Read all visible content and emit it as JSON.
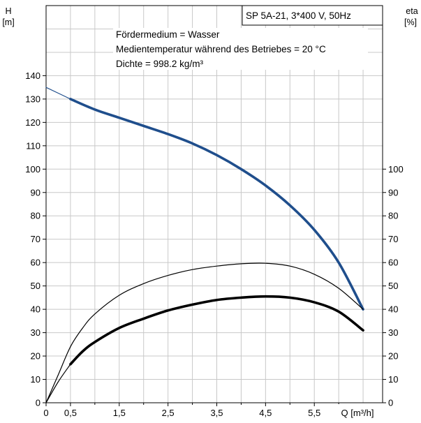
{
  "chart_data": {
    "type": "line",
    "title": "SP 5A-21, 3*400 V, 50Hz",
    "annotations": [
      "Fördermedium = Wasser",
      "Medientemperatur während des Betriebes = 20 °C",
      "Dichte = 998.2 kg/m³"
    ],
    "y_left_label": [
      "H",
      "[m]"
    ],
    "y_right_label": [
      "eta",
      "[%]"
    ],
    "x_label": "Q [m³/h]",
    "x_tick_labels": [
      "0",
      "0,5",
      "1,5",
      "2,5",
      "3,5",
      "4,5",
      "5,5"
    ],
    "x_ticks": [
      0,
      0.5,
      1.5,
      2.5,
      3.5,
      4.5,
      5.5
    ],
    "xlim": [
      0,
      6.9
    ],
    "y_left_ticks": [
      0,
      10,
      20,
      30,
      40,
      50,
      60,
      70,
      80,
      90,
      100,
      110,
      120,
      130,
      140
    ],
    "y_right_ticks": [
      0,
      10,
      20,
      30,
      40,
      50,
      60,
      70,
      80,
      90,
      100
    ],
    "ylim": [
      0,
      170
    ],
    "grid": true,
    "series": [
      {
        "role": "head-curve-extension",
        "color": "#1f4e8c",
        "style": "thin",
        "x": [
          0,
          0.5
        ],
        "y": [
          135,
          130
        ]
      },
      {
        "role": "head-curve",
        "color": "#1f4e8c",
        "style": "thick",
        "x": [
          0.5,
          1.0,
          1.5,
          2.0,
          2.5,
          3.0,
          3.5,
          4.0,
          4.5,
          5.0,
          5.5,
          6.0,
          6.5
        ],
        "y": [
          130,
          125.5,
          122,
          118.5,
          115,
          111,
          106,
          100,
          93,
          84.5,
          74,
          60,
          40
        ]
      },
      {
        "role": "upper-efficiency-curve",
        "color": "#000000",
        "style": "thin",
        "x": [
          0,
          0.25,
          0.5,
          0.75,
          1.0,
          1.5,
          2.0,
          2.5,
          3.0,
          3.5,
          4.0,
          4.5,
          5.0,
          5.5,
          6.0,
          6.5
        ],
        "y": [
          0,
          12,
          24,
          32,
          38,
          46,
          51,
          54.5,
          57,
          58.5,
          59.5,
          59.7,
          58.5,
          55,
          49,
          40
        ]
      },
      {
        "role": "lower-efficiency-curve-extension",
        "color": "#000000",
        "style": "thin",
        "x": [
          0,
          0.25,
          0.5
        ],
        "y": [
          0,
          9,
          16.5
        ]
      },
      {
        "role": "lower-efficiency-curve",
        "color": "#000000",
        "style": "thick",
        "x": [
          0.5,
          0.75,
          1.0,
          1.5,
          2.0,
          2.5,
          3.0,
          3.5,
          4.0,
          4.5,
          5.0,
          5.5,
          6.0,
          6.5
        ],
        "y": [
          16.5,
          22,
          26,
          32,
          36,
          39.5,
          42,
          44,
          45,
          45.5,
          45,
          43,
          39,
          31
        ]
      }
    ]
  }
}
